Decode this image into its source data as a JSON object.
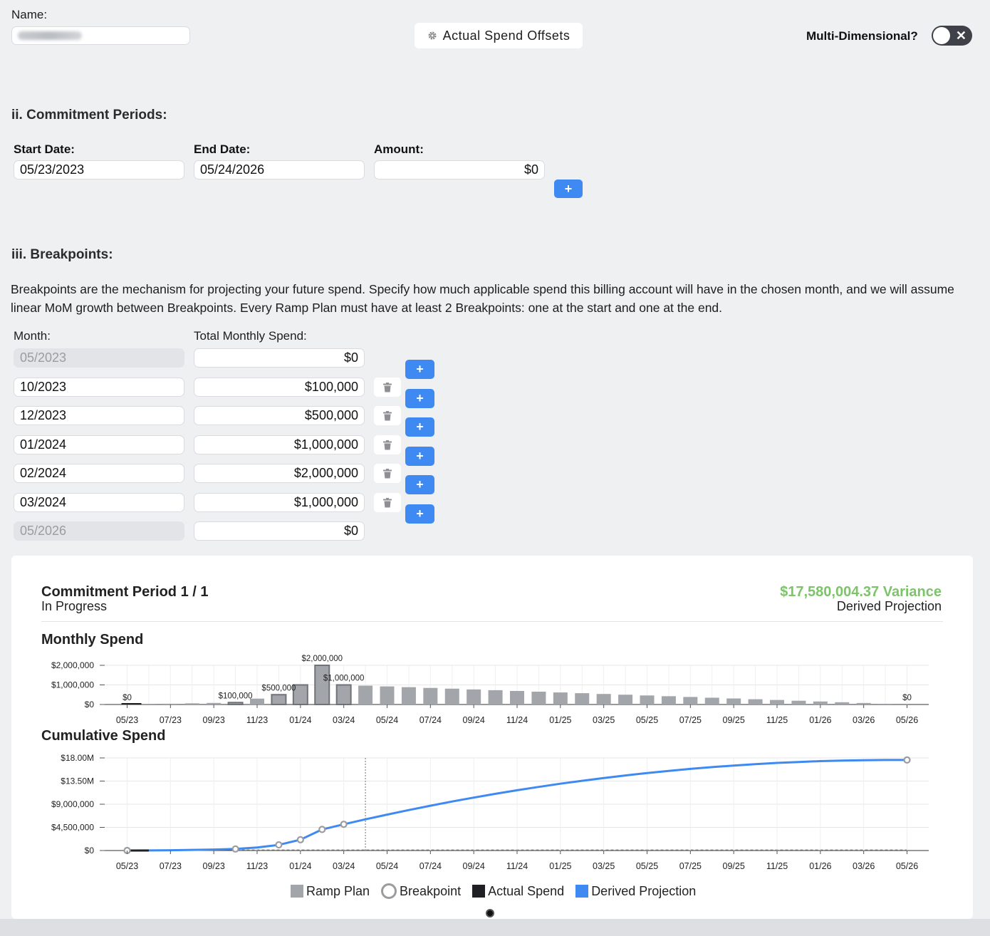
{
  "header": {
    "name_label": "Name:",
    "actual_spend_offsets_label": "Actual Spend Offsets",
    "multi_dimensional_label": "Multi-Dimensional?",
    "toggle_off_glyph": "✕"
  },
  "commitment_periods": {
    "title": "ii. Commitment Periods:",
    "start_label": "Start Date:",
    "end_label": "End Date:",
    "amount_label": "Amount:",
    "start_value": "05/23/2023",
    "end_value": "05/24/2026",
    "amount_value": "$0",
    "add_glyph": "+"
  },
  "breakpoints": {
    "title": "iii. Breakpoints:",
    "description": "Breakpoints are the mechanism for projecting your future spend. Specify how much applicable spend this billing account will have in the chosen month, and we will assume linear MoM growth between Breakpoints. Every Ramp Plan must have at least 2 Breakpoints: one at the start and one at the end.",
    "month_label": "Month:",
    "spend_label": "Total Monthly Spend:",
    "rows": [
      {
        "month": "05/2023",
        "spend": "$0"
      },
      {
        "month": "10/2023",
        "spend": "$100,000"
      },
      {
        "month": "12/2023",
        "spend": "$500,000"
      },
      {
        "month": "01/2024",
        "spend": "$1,000,000"
      },
      {
        "month": "02/2024",
        "spend": "$2,000,000"
      },
      {
        "month": "03/2024",
        "spend": "$1,000,000"
      },
      {
        "month": "05/2026",
        "spend": "$0"
      }
    ]
  },
  "card": {
    "title": "Commitment Period 1 / 1",
    "status": "In Progress",
    "variance": "$17,580,004.37 Variance",
    "variance_sub": "Derived Projection",
    "monthly_title": "Monthly Spend",
    "cumulative_title": "Cumulative Spend",
    "legend": {
      "ramp_plan": "Ramp Plan",
      "breakpoint": "Breakpoint",
      "actual_spend": "Actual Spend",
      "derived_projection": "Derived Projection"
    }
  },
  "colors": {
    "ramp_bar": "#a2a5aa",
    "breakpoint_bar_stroke": "#6f7278",
    "actual": "#1f2024",
    "projection": "#3e8af2",
    "variance": "#7cc36a",
    "breakpoint_circle": "#9b9c9f"
  },
  "chart_data": [
    {
      "type": "bar",
      "title": "Monthly Spend",
      "x_tick_labels": [
        "05/23",
        "07/23",
        "09/23",
        "11/23",
        "01/24",
        "03/24",
        "05/24",
        "07/24",
        "09/24",
        "11/24",
        "01/25",
        "03/25",
        "05/25",
        "07/25",
        "09/25",
        "11/25",
        "01/26",
        "03/26",
        "05/26"
      ],
      "y_tick_labels": [
        "$2,000,000",
        "$1,000,000",
        "$0"
      ],
      "ylim": [
        0,
        2000000
      ],
      "categories": [
        "05/23",
        "06/23",
        "07/23",
        "08/23",
        "09/23",
        "10/23",
        "11/23",
        "12/23",
        "01/24",
        "02/24",
        "03/24",
        "04/24",
        "05/24",
        "06/24",
        "07/24",
        "08/24",
        "09/24",
        "10/24",
        "11/24",
        "12/24",
        "01/25",
        "02/25",
        "03/25",
        "04/25",
        "05/25",
        "06/25",
        "07/25",
        "08/25",
        "09/25",
        "10/25",
        "11/25",
        "12/25",
        "01/26",
        "02/26",
        "03/26",
        "04/26",
        "05/26"
      ],
      "values": [
        0,
        20000,
        40000,
        60000,
        80000,
        100000,
        300000,
        500000,
        1000000,
        2000000,
        1000000,
        962000,
        923000,
        885000,
        846000,
        808000,
        769000,
        731000,
        692000,
        654000,
        615000,
        577000,
        538000,
        500000,
        462000,
        423000,
        385000,
        346000,
        308000,
        269000,
        231000,
        192000,
        154000,
        115000,
        77000,
        38000,
        0
      ],
      "breakpoint_indices": [
        0,
        5,
        7,
        8,
        9,
        10,
        36
      ],
      "data_labels": [
        {
          "index": 0,
          "text": "$0"
        },
        {
          "index": 5,
          "text": "$100,000"
        },
        {
          "index": 7,
          "text": "$500,000"
        },
        {
          "index": 9,
          "text": "$2,000,000"
        },
        {
          "index": 10,
          "text": "$1,000,000"
        },
        {
          "index": 36,
          "text": "$0"
        }
      ],
      "actual_spend_indices": [
        0
      ]
    },
    {
      "type": "line",
      "title": "Cumulative Spend",
      "x_tick_labels": [
        "05/23",
        "07/23",
        "09/23",
        "11/23",
        "01/24",
        "03/24",
        "05/24",
        "07/24",
        "09/24",
        "11/24",
        "01/25",
        "03/25",
        "05/25",
        "07/25",
        "09/25",
        "11/25",
        "01/26",
        "03/26",
        "05/26"
      ],
      "y_tick_labels": [
        "$18.00M",
        "$13.50M",
        "$9,000,000",
        "$4,500,000",
        "$0"
      ],
      "ylim": [
        0,
        18000000
      ],
      "series": [
        {
          "name": "Derived Projection",
          "values": [
            0,
            20000,
            60000,
            120000,
            200000,
            300000,
            600000,
            1100000,
            2100000,
            4100000,
            5100000,
            6062000,
            6985000,
            7870000,
            8716000,
            9524000,
            10293000,
            11024000,
            11716000,
            12370000,
            12985000,
            13562000,
            14100000,
            14600000,
            15062000,
            15485000,
            15870000,
            16216000,
            16524000,
            16793000,
            17024000,
            17216000,
            17370000,
            17485000,
            17562000,
            17600000,
            17600000
          ]
        }
      ],
      "breakpoint_indices": [
        0,
        5,
        7,
        8,
        9,
        10,
        36
      ],
      "current_month_index": 11
    }
  ]
}
